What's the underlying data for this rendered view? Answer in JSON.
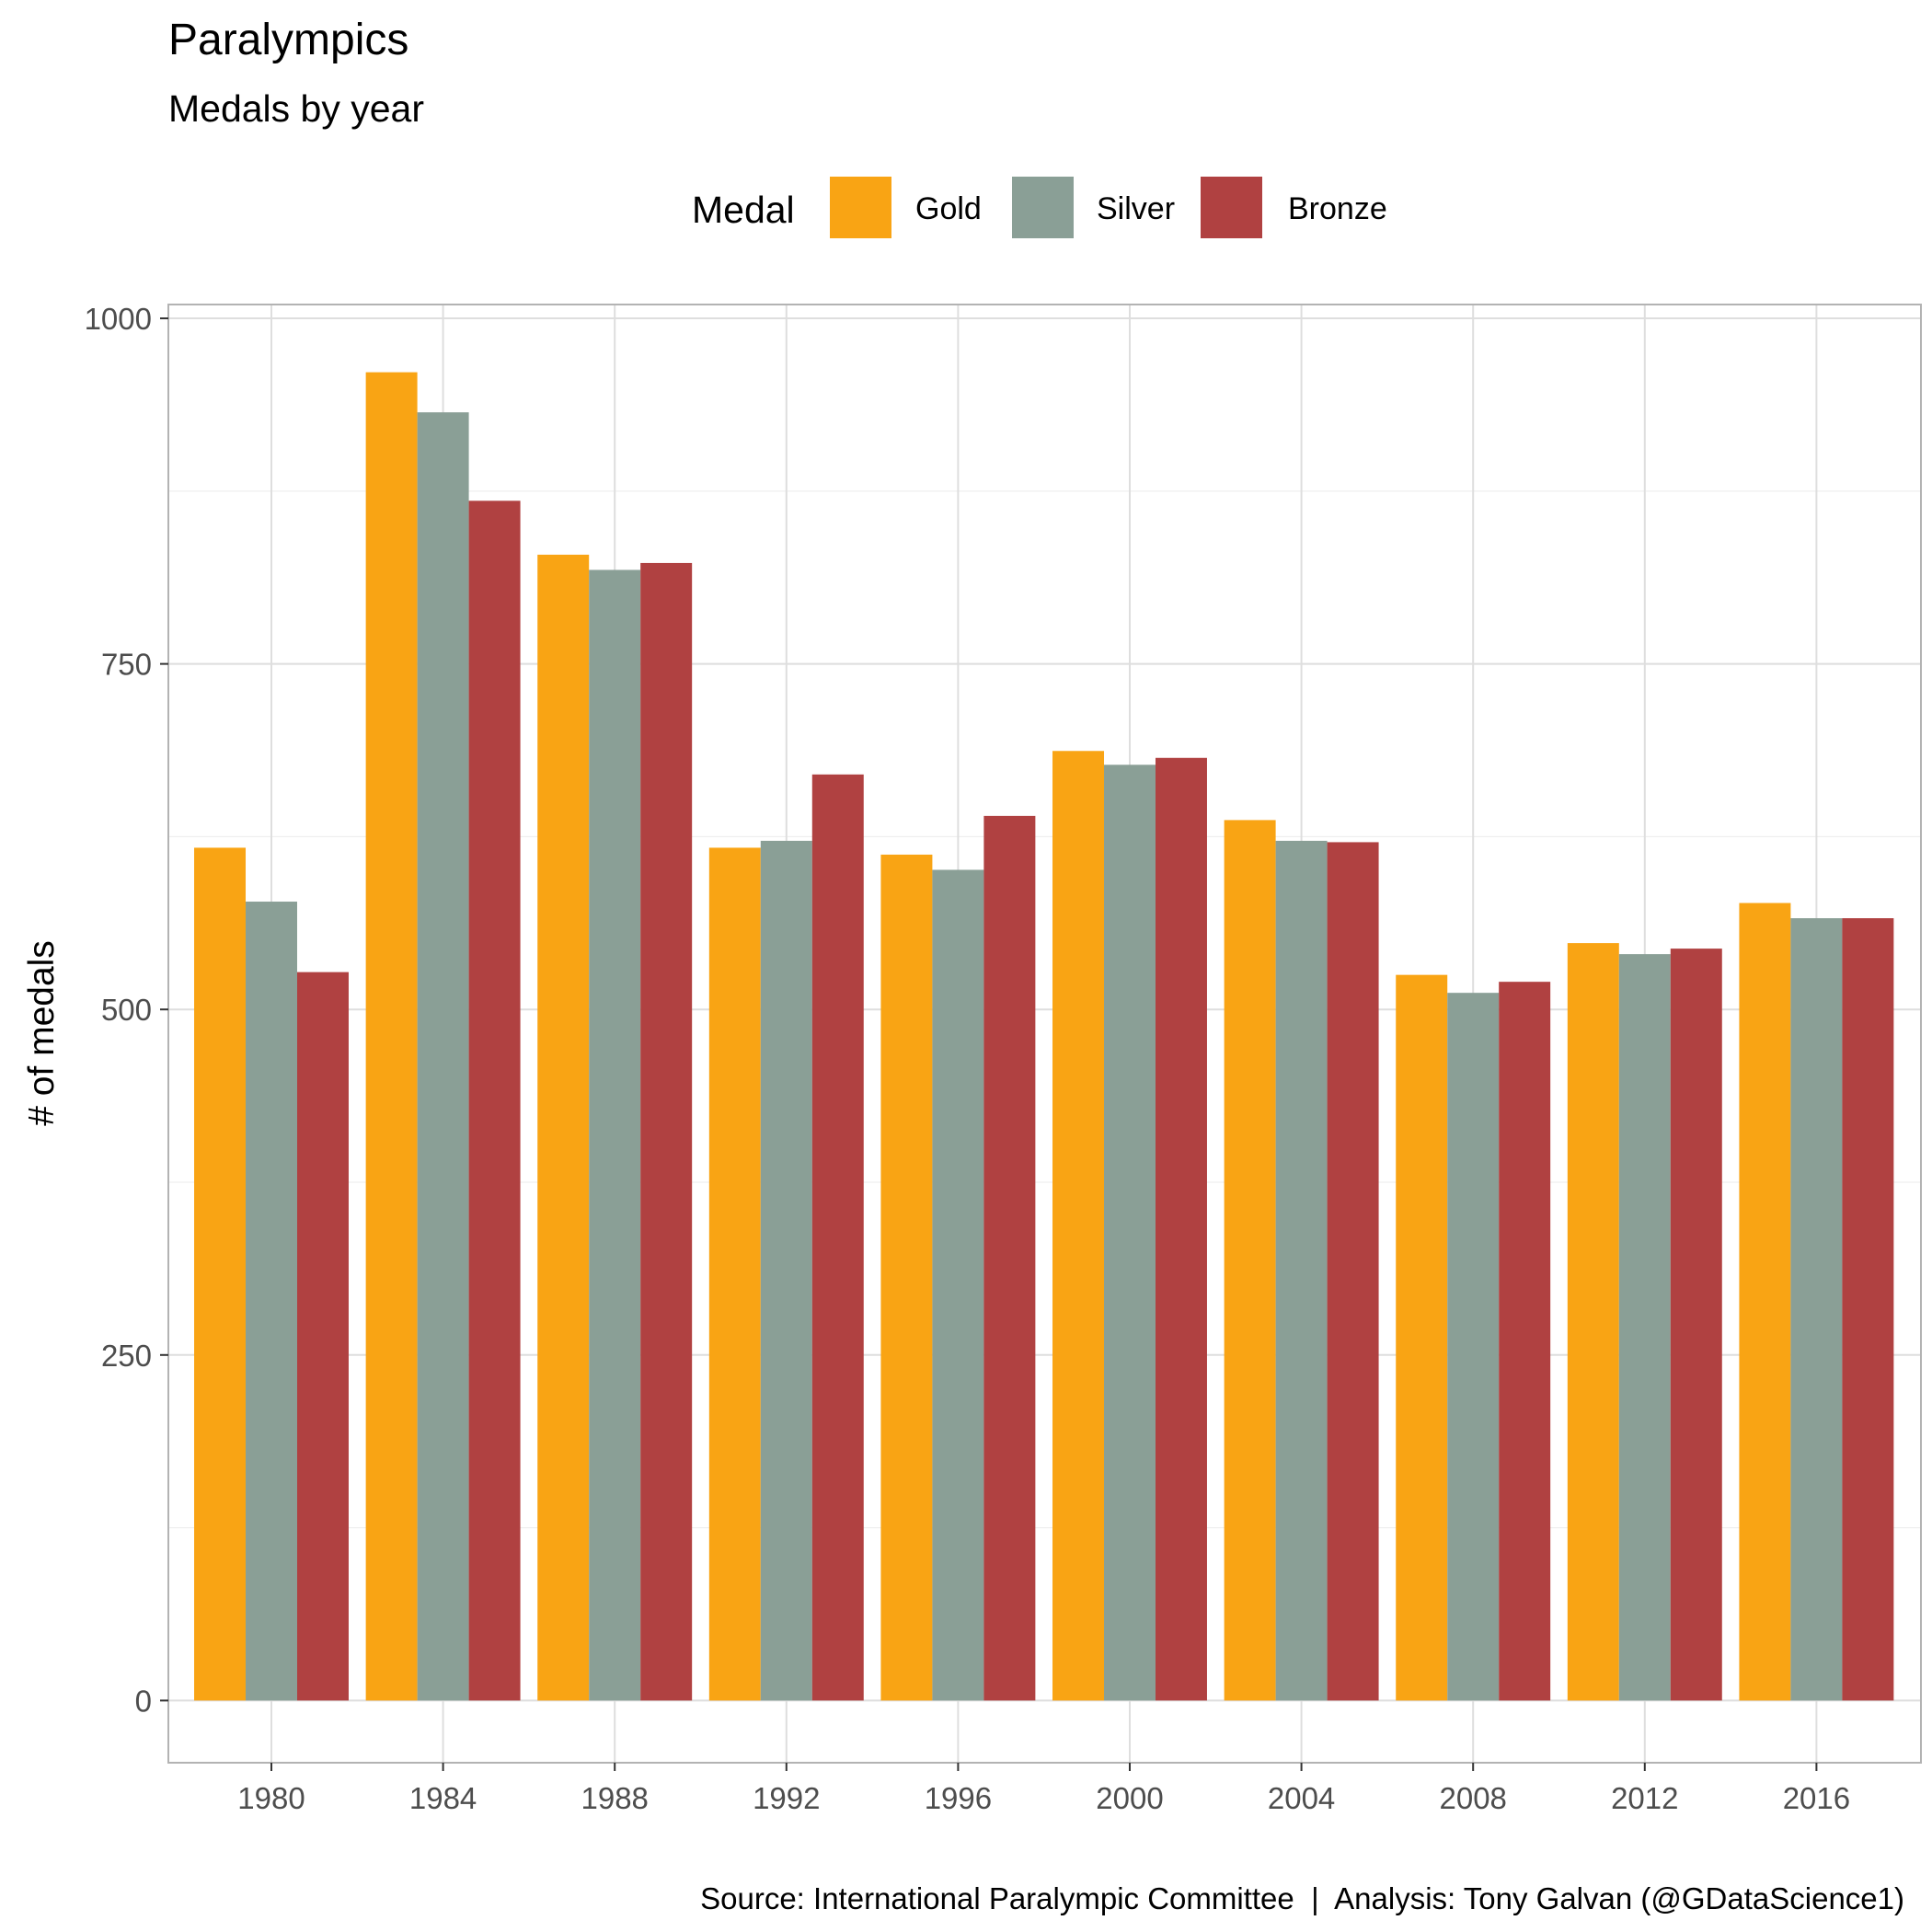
{
  "chart_data": {
    "type": "bar",
    "title": "Paralympics",
    "subtitle": "Medals by year",
    "xlabel": "",
    "ylabel": "# of medals",
    "caption": "Source: International Paralympic Committee  |  Analysis: Tony Galvan (@GDataScience1)",
    "legend": {
      "title": "Medal",
      "position": "top",
      "entries": [
        "Gold",
        "Silver",
        "Bronze"
      ]
    },
    "categories": [
      "1980",
      "1984",
      "1988",
      "1992",
      "1996",
      "2000",
      "2004",
      "2008",
      "2012",
      "2016"
    ],
    "series": [
      {
        "name": "Gold",
        "color": "#F9A414",
        "values": [
          617,
          961,
          829,
          617,
          612,
          687,
          637,
          525,
          548,
          577
        ]
      },
      {
        "name": "Silver",
        "color": "#8A9F96",
        "values": [
          578,
          932,
          818,
          622,
          601,
          677,
          622,
          512,
          540,
          566
        ]
      },
      {
        "name": "Bronze",
        "color": "#B04141",
        "values": [
          527,
          868,
          823,
          670,
          640,
          682,
          621,
          520,
          544,
          566
        ]
      }
    ],
    "y_ticks": [
      0,
      250,
      500,
      750,
      1000
    ],
    "ylim": [
      -45,
      1010
    ],
    "grid": true,
    "colors": {
      "grid": "#EBEBEB",
      "panel_border": "#B3B3B3",
      "tick_text": "#4D4D4D"
    }
  }
}
